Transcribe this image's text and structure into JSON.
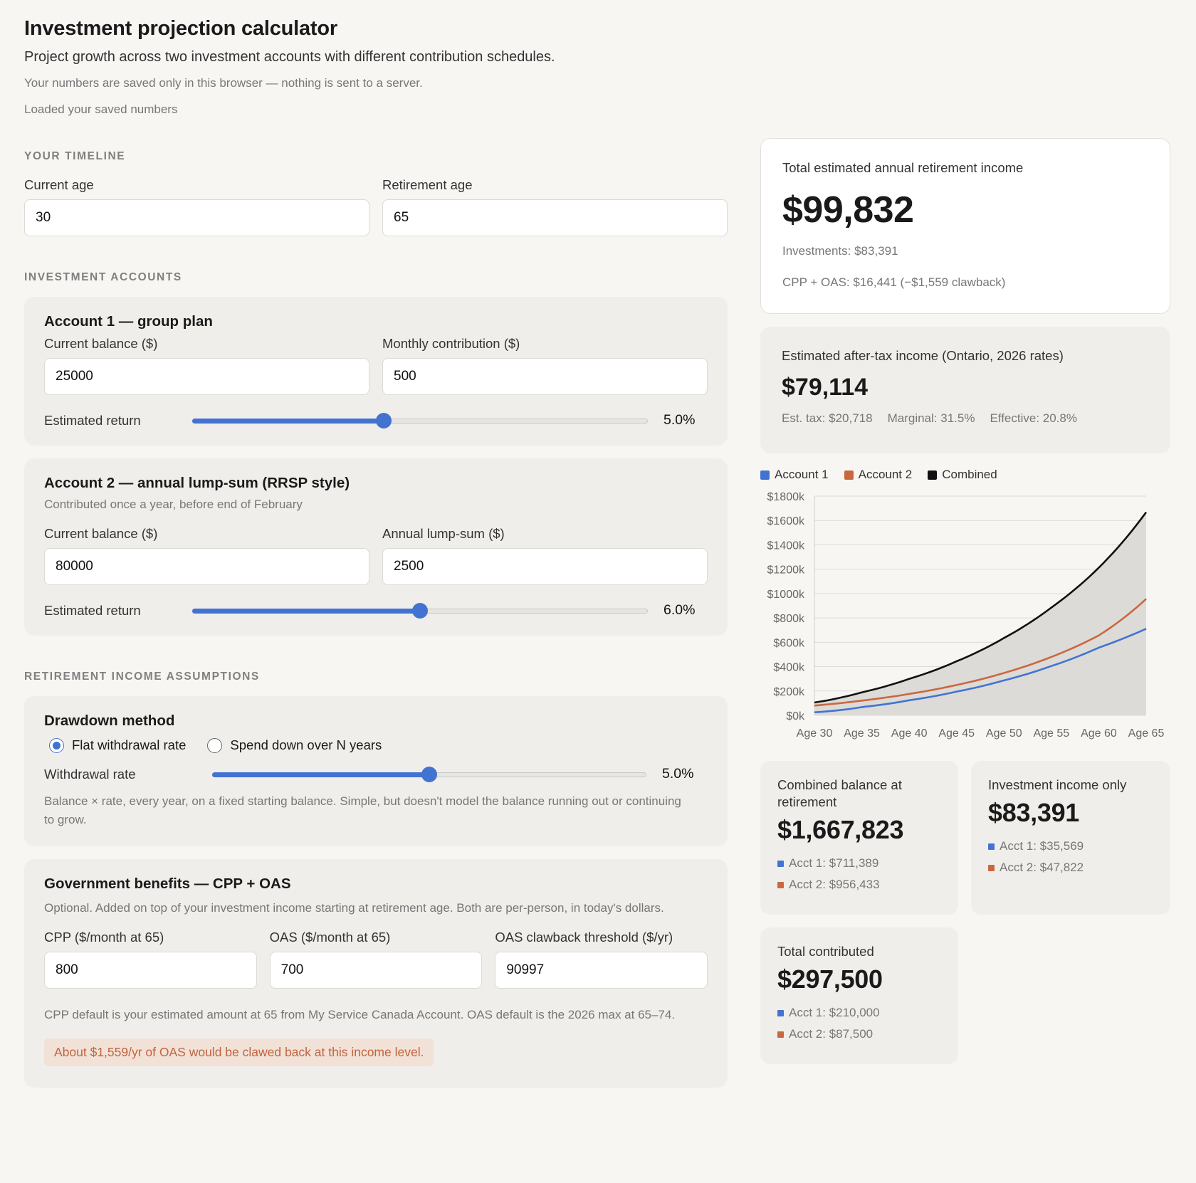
{
  "header": {
    "title": "Investment projection calculator",
    "subtitle": "Project growth across two investment accounts with different contribution schedules.",
    "privacy_note": "Your numbers are saved only in this browser — nothing is sent to a server.",
    "status": "Loaded your saved numbers"
  },
  "timeline": {
    "section_label": "YOUR TIMELINE",
    "current_age_label": "Current age",
    "current_age": "30",
    "retirement_age_label": "Retirement age",
    "retirement_age": "65"
  },
  "accounts": {
    "section_label": "INVESTMENT ACCOUNTS",
    "account1": {
      "title": "Account 1 — group plan",
      "balance_label": "Current balance ($)",
      "balance": "25000",
      "contribution_label": "Monthly contribution ($)",
      "contribution": "500",
      "return_label": "Estimated return",
      "return_value": "5.0%",
      "slider_fraction": 0.42
    },
    "account2": {
      "title": "Account 2 — annual lump-sum (RRSP style)",
      "subtitle": "Contributed once a year, before end of February",
      "balance_label": "Current balance ($)",
      "balance": "80000",
      "contribution_label": "Annual lump-sum ($)",
      "contribution": "2500",
      "return_label": "Estimated return",
      "return_value": "6.0%",
      "slider_fraction": 0.5
    }
  },
  "retirement": {
    "section_label": "RETIREMENT INCOME ASSUMPTIONS",
    "drawdown": {
      "title": "Drawdown method",
      "option1": "Flat withdrawal rate",
      "option2": "Spend down over N years",
      "rate_label": "Withdrawal rate",
      "rate_value": "5.0%",
      "slider_fraction": 0.5,
      "help": "Balance × rate, every year, on a fixed starting balance. Simple, but doesn't model the balance running out or continuing to grow."
    },
    "benefits": {
      "title": "Government benefits — CPP + OAS",
      "subtitle": "Optional. Added on top of your investment income starting at retirement age. Both are per-person, in today's dollars.",
      "cpp_label": "CPP ($/month at 65)",
      "cpp": "800",
      "oas_label": "OAS ($/month at 65)",
      "oas": "700",
      "clawback_label": "OAS clawback threshold ($/yr)",
      "clawback": "90997",
      "help": "CPP default is your estimated amount at 65 from My Service Canada Account. OAS default is the 2026 max at 65–74.",
      "warning": "About $1,559/yr of OAS would be clawed back at this income level."
    }
  },
  "summary": {
    "total_label": "Total estimated annual retirement income",
    "total_value": "$99,832",
    "investments_line": "Investments: $83,391",
    "benefits_line": "CPP + OAS: $16,441 (−$1,559 clawback)",
    "aftertax_label": "Estimated after-tax income (Ontario, 2026 rates)",
    "aftertax_value": "$79,114",
    "est_tax": "Est. tax: $20,718",
    "marginal": "Marginal: 31.5%",
    "effective": "Effective: 20.8%"
  },
  "stats": {
    "combined": {
      "title": "Combined balance at retirement",
      "value": "$1,667,823",
      "acct1": "Acct 1: $711,389",
      "acct2": "Acct 2: $956,433"
    },
    "income": {
      "title": "Investment income only",
      "value": "$83,391",
      "acct1": "Acct 1: $35,569",
      "acct2": "Acct 2: $47,822"
    },
    "contributed": {
      "title": "Total contributed",
      "value": "$297,500",
      "acct1": "Acct 1: $210,000",
      "acct2": "Acct 2: $87,500"
    }
  },
  "colors": {
    "account1": "#4273d1",
    "account2": "#c9683f",
    "combined": "#111111"
  },
  "chart_data": {
    "type": "line",
    "legend": [
      "Account 1",
      "Account 2",
      "Combined"
    ],
    "legend_position": "top-left",
    "grid": true,
    "ylim": [
      0,
      1800
    ],
    "y_ticks": [
      "$0k",
      "$200k",
      "$400k",
      "$600k",
      "$800k",
      "$1000k",
      "$1200k",
      "$1400k",
      "$1600k",
      "$1800k"
    ],
    "y_tick_values": [
      0,
      200,
      400,
      600,
      800,
      1000,
      1200,
      1400,
      1600,
      1800
    ],
    "x": [
      30,
      35,
      40,
      45,
      50,
      55,
      60,
      65
    ],
    "x_ticks": [
      "Age 30",
      "Age 35",
      "Age 40",
      "Age 45",
      "Age 50",
      "Age 55",
      "Age 60",
      "Age 65"
    ],
    "series": [
      {
        "name": "Account 1",
        "values": [
          25,
          68,
          124,
          195,
          287,
          405,
          556,
          711
        ]
      },
      {
        "name": "Account 2",
        "values": [
          80,
          121,
          176,
          249,
          348,
          480,
          656,
          956
        ]
      },
      {
        "name": "Combined",
        "values": [
          105,
          189,
          300,
          444,
          635,
          885,
          1212,
          1668
        ]
      }
    ]
  }
}
